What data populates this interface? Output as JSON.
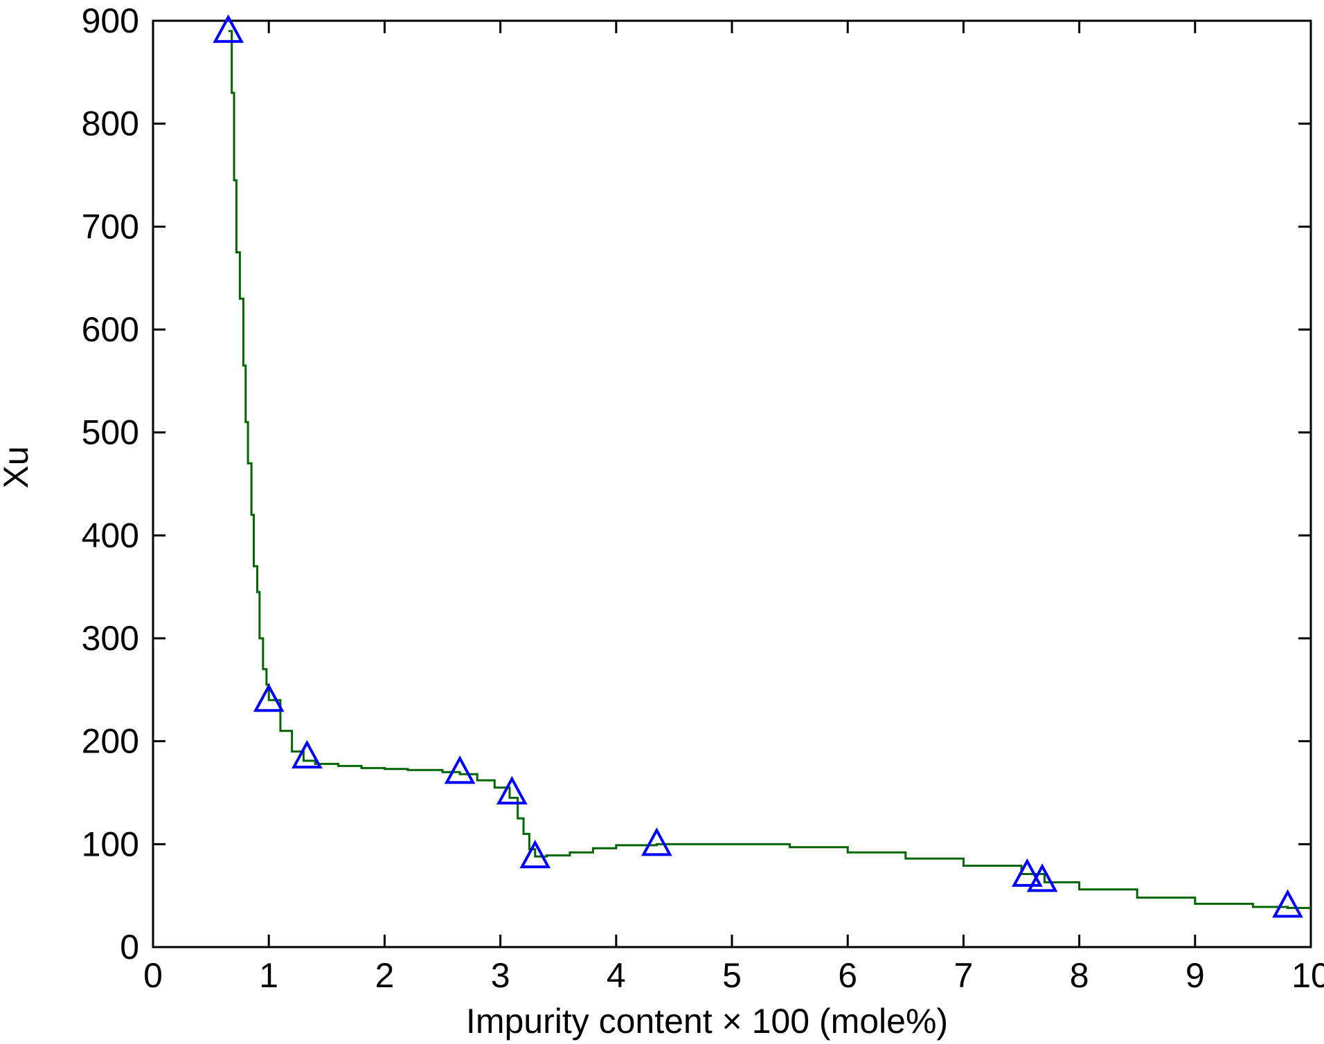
{
  "chart_data": {
    "type": "line",
    "title": "",
    "xlabel": "Impurity content × 100 (mole%)",
    "ylabel": "Xu",
    "xlim": [
      0,
      10
    ],
    "ylim": [
      0,
      900
    ],
    "xticks": [
      0,
      1,
      2,
      3,
      4,
      5,
      6,
      7,
      8,
      9,
      10
    ],
    "yticks": [
      0,
      100,
      200,
      300,
      400,
      500,
      600,
      700,
      800,
      900
    ],
    "xtick_labels": [
      "0",
      "1",
      "2",
      "3",
      "4",
      "5",
      "6",
      "7",
      "8",
      "9",
      "10"
    ],
    "ytick_labels": [
      "0",
      "100",
      "200",
      "300",
      "400",
      "500",
      "600",
      "700",
      "800",
      "900"
    ],
    "grid": false,
    "series": [
      {
        "color": "#006400",
        "style": "stepped-line",
        "x": [
          0.65,
          0.68,
          0.7,
          0.72,
          0.75,
          0.78,
          0.8,
          0.82,
          0.85,
          0.87,
          0.9,
          0.92,
          0.95,
          0.98,
          1.0,
          1.1,
          1.2,
          1.3,
          1.4,
          1.6,
          1.8,
          2.0,
          2.2,
          2.5,
          2.65,
          2.8,
          2.95,
          3.08,
          3.15,
          3.2,
          3.25,
          3.3,
          3.4,
          3.6,
          3.8,
          4.0,
          4.35,
          5.0,
          5.5,
          6.0,
          6.5,
          7.0,
          7.5,
          7.7,
          8.0,
          8.5,
          9.0,
          9.5,
          9.8,
          10.0
        ],
        "y": [
          890,
          830,
          745,
          675,
          630,
          565,
          510,
          470,
          420,
          370,
          345,
          300,
          270,
          255,
          240,
          210,
          190,
          181,
          178,
          176,
          174,
          173,
          172,
          170,
          168,
          162,
          155,
          145,
          125,
          110,
          95,
          88,
          89,
          92,
          96,
          99,
          100,
          100,
          97,
          92,
          86,
          79,
          71,
          63,
          56,
          48,
          42,
          39,
          38,
          38
        ]
      },
      {
        "color": "#0000ff",
        "style": "markers",
        "marker": "triangle",
        "x": [
          0.65,
          1.0,
          1.33,
          2.65,
          3.1,
          3.3,
          4.35,
          7.55,
          7.68,
          9.8
        ],
        "y": [
          890,
          240,
          185,
          170,
          150,
          88,
          100,
          70,
          65,
          40
        ]
      }
    ]
  }
}
